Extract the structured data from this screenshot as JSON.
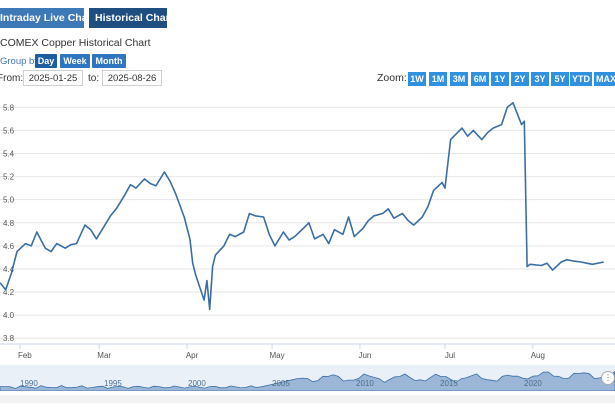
{
  "tabs": [
    {
      "label": "Intraday Live Chart"
    },
    {
      "label": "Historical Chart"
    }
  ],
  "chart_title": "COMEX Copper Historical Chart",
  "group": {
    "label": "Group by:",
    "options": [
      "Day",
      "Week",
      "Month"
    ],
    "selected": "Day"
  },
  "range": {
    "from_label": "From:",
    "from_value": "2025-01-25",
    "to_label": "to:",
    "to_value": "2025-08-26"
  },
  "zoom": {
    "label": "Zoom:",
    "buttons": [
      "1W",
      "1M",
      "3M",
      "6M",
      "1Y",
      "2Y",
      "3Y",
      "5Y",
      "YTD",
      "MAX"
    ]
  },
  "colors": {
    "line": "#3a6ea5",
    "tab_active": "#1f4f80",
    "tab_inactive": "#3d78b7",
    "button": "#2f91e0",
    "navigator": "#3a6ea5"
  },
  "chart_data": {
    "type": "line",
    "title": "COMEX Copper Historical Chart",
    "xlabel": "",
    "ylabel": "",
    "ylim": [
      3.75,
      5.95
    ],
    "yticks": [
      3.8,
      4.0,
      4.2,
      4.4,
      4.6,
      4.8,
      5.0,
      5.2,
      5.4,
      5.6,
      5.8
    ],
    "ytick_labels": [
      "3.8",
      "4.0",
      "4.2",
      "4.4",
      "4.6",
      "4.8",
      "5.0",
      "5.2",
      "5.4",
      "5.6",
      "5.8"
    ],
    "xlim": [
      "2025-01-25",
      "2025-08-30"
    ],
    "xticks": [
      "2025-02-01",
      "2025-03-01",
      "2025-04-01",
      "2025-05-01",
      "2025-06-01",
      "2025-07-01",
      "2025-08-01"
    ],
    "xtick_labels": [
      "Feb",
      "Mar",
      "Apr",
      "May",
      "Jun",
      "Jul",
      "Aug"
    ],
    "series": [
      {
        "x": [
          "2025-01-25",
          "2025-01-27",
          "2025-01-29",
          "2025-01-31",
          "2025-02-03",
          "2025-02-05",
          "2025-02-07",
          "2025-02-10",
          "2025-02-12",
          "2025-02-14",
          "2025-02-17",
          "2025-02-19",
          "2025-02-21",
          "2025-02-24",
          "2025-02-26",
          "2025-02-28",
          "2025-03-03",
          "2025-03-05",
          "2025-03-07",
          "2025-03-10",
          "2025-03-12",
          "2025-03-14",
          "2025-03-17",
          "2025-03-19",
          "2025-03-21",
          "2025-03-24",
          "2025-03-26",
          "2025-03-28",
          "2025-03-31",
          "2025-04-02",
          "2025-04-03",
          "2025-04-04",
          "2025-04-07",
          "2025-04-08",
          "2025-04-09",
          "2025-04-10",
          "2025-04-11",
          "2025-04-14",
          "2025-04-16",
          "2025-04-18",
          "2025-04-21",
          "2025-04-23",
          "2025-04-25",
          "2025-04-28",
          "2025-04-30",
          "2025-05-02",
          "2025-05-05",
          "2025-05-07",
          "2025-05-09",
          "2025-05-12",
          "2025-05-14",
          "2025-05-16",
          "2025-05-19",
          "2025-05-21",
          "2025-05-23",
          "2025-05-26",
          "2025-05-28",
          "2025-05-30",
          "2025-06-02",
          "2025-06-04",
          "2025-06-06",
          "2025-06-09",
          "2025-06-11",
          "2025-06-13",
          "2025-06-16",
          "2025-06-18",
          "2025-06-20",
          "2025-06-23",
          "2025-06-25",
          "2025-06-27",
          "2025-06-30",
          "2025-07-01",
          "2025-07-03",
          "2025-07-07",
          "2025-07-09",
          "2025-07-11",
          "2025-07-14",
          "2025-07-16",
          "2025-07-18",
          "2025-07-21",
          "2025-07-23",
          "2025-07-25",
          "2025-07-28",
          "2025-07-29",
          "2025-07-30",
          "2025-07-31",
          "2025-08-04",
          "2025-08-06",
          "2025-08-08",
          "2025-08-11",
          "2025-08-13",
          "2025-08-15",
          "2025-08-18",
          "2025-08-20",
          "2025-08-22",
          "2025-08-26"
        ],
        "values": [
          4.28,
          4.22,
          4.36,
          4.55,
          4.62,
          4.6,
          4.72,
          4.58,
          4.55,
          4.62,
          4.58,
          4.61,
          4.62,
          4.78,
          4.74,
          4.66,
          4.78,
          4.86,
          4.92,
          5.04,
          5.13,
          5.1,
          5.18,
          5.14,
          5.12,
          5.24,
          5.16,
          5.05,
          4.85,
          4.66,
          4.45,
          4.35,
          4.13,
          4.3,
          4.05,
          4.42,
          4.52,
          4.6,
          4.7,
          4.68,
          4.72,
          4.88,
          4.86,
          4.85,
          4.7,
          4.6,
          4.72,
          4.65,
          4.68,
          4.75,
          4.8,
          4.66,
          4.7,
          4.62,
          4.74,
          4.7,
          4.85,
          4.68,
          4.75,
          4.82,
          4.86,
          4.88,
          4.92,
          4.84,
          4.88,
          4.82,
          4.78,
          4.85,
          4.94,
          5.08,
          5.15,
          5.1,
          5.52,
          5.62,
          5.55,
          5.6,
          5.52,
          5.58,
          5.62,
          5.65,
          5.8,
          5.84,
          5.65,
          5.68,
          4.42,
          4.44,
          4.43,
          4.45,
          4.39,
          4.46,
          4.48,
          4.47,
          4.46,
          4.45,
          4.44,
          4.46
        ]
      }
    ]
  },
  "navigator": {
    "years": [
      "1990",
      "1995",
      "2000",
      "2005",
      "2010",
      "2015",
      "2020"
    ],
    "handle_icon": "grip-icon"
  }
}
